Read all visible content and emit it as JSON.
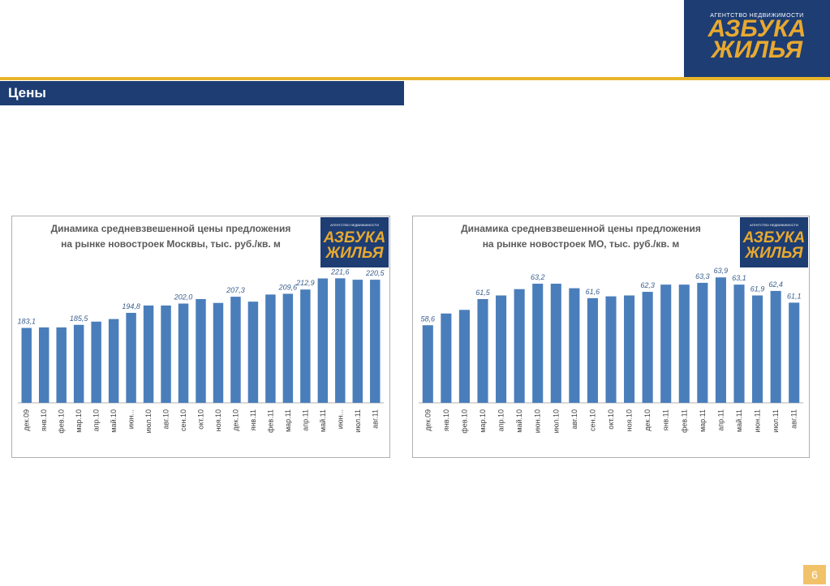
{
  "header": {
    "title": "Цены",
    "logo": {
      "caption": "АГЕНТСТВО НЕДВИЖИМОСТИ",
      "line1": "АЗБУКА",
      "line2": "ЖИЛЬЯ"
    }
  },
  "page_number": "6",
  "chart_data": [
    {
      "type": "bar",
      "title_lines": [
        "Динамика средневзвешенной цены предложения",
        "на рынке новостроек Москвы, тыс. руб./кв. м"
      ],
      "categories": [
        "дек.09",
        "янв.10",
        "фев.10",
        "мар.10",
        "апр.10",
        "май.10",
        "июн...",
        "июл.10",
        "авг.10",
        "сен.10",
        "окт.10",
        "ноя.10",
        "дек.10",
        "янв.11",
        "фев.11",
        "мар.11",
        "апр.11",
        "май.11",
        "июн...",
        "июл.11",
        "авг.11"
      ],
      "values": [
        183.1,
        183.5,
        183.5,
        185.5,
        188,
        190,
        194.8,
        200.5,
        200.5,
        202.0,
        205.5,
        202.5,
        207.3,
        203.5,
        209,
        209.6,
        212.9,
        221.5,
        221.6,
        220.5,
        220.5
      ],
      "value_labels": [
        "183,1",
        null,
        null,
        "185,5",
        null,
        null,
        "194,8",
        null,
        null,
        "202,0",
        null,
        null,
        "207,3",
        null,
        null,
        "209,6",
        "212,9",
        null,
        "221,6",
        null,
        "220,5"
      ],
      "color": "#4a7ebb",
      "ylim": [
        125,
        230
      ]
    },
    {
      "type": "bar",
      "title_lines": [
        "Динамика средневзвешенной цены предложения",
        "на рынке новостроек МО, тыс. руб./кв. м"
      ],
      "categories": [
        "дек.09",
        "янв.10",
        "фев.10",
        "мар.10",
        "апр.10",
        "май.10",
        "июн.10",
        "июл.10",
        "авг.10",
        "сен.10",
        "окт.10",
        "ноя.10",
        "дек.10",
        "янв.11",
        "фев.11",
        "мар.11",
        "апр.11",
        "май.11",
        "июн.11",
        "июл.11",
        "авг.11"
      ],
      "values": [
        58.6,
        59.9,
        60.3,
        61.5,
        61.9,
        62.6,
        63.2,
        63.2,
        62.7,
        61.6,
        61.8,
        61.9,
        62.3,
        63.1,
        63.1,
        63.3,
        63.9,
        63.1,
        61.9,
        62.4,
        61.1
      ],
      "value_labels": [
        "58,6",
        null,
        null,
        "61,5",
        null,
        null,
        "63,2",
        null,
        null,
        "61,6",
        null,
        null,
        "62,3",
        null,
        null,
        "63,3",
        "63,9",
        "63,1",
        "61,9",
        "62,4",
        "61,1"
      ],
      "color": "#4a7ebb",
      "ylim": [
        50,
        65
      ]
    }
  ]
}
